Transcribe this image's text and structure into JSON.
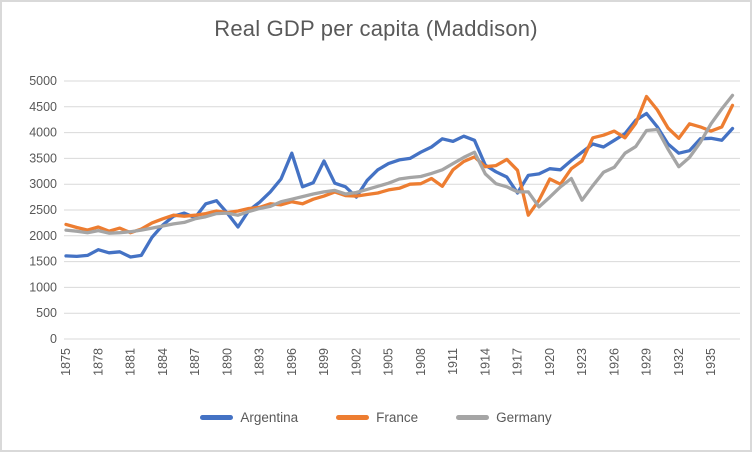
{
  "title": "Real GDP per capita (Maddison)",
  "axis": {
    "label_color": "#595959",
    "gridline_color": "#D9D9D9",
    "y_tick_labels": [
      "0",
      "500",
      "1000",
      "1500",
      "2000",
      "2500",
      "3000",
      "3500",
      "4000",
      "4500",
      "5000"
    ],
    "x_tick_labels": [
      "1875",
      "1878",
      "1881",
      "1884",
      "1887",
      "1890",
      "1893",
      "1896",
      "1899",
      "1902",
      "1905",
      "1908",
      "1911",
      "1914",
      "1917",
      "1920",
      "1923",
      "1926",
      "1929",
      "1932",
      "1935"
    ]
  },
  "legend": {
    "items": [
      {
        "label": "Argentina",
        "color": "#4472C4"
      },
      {
        "label": "France",
        "color": "#ED7D31"
      },
      {
        "label": "Germany",
        "color": "#A5A5A5"
      }
    ]
  },
  "chart_data": {
    "type": "line",
    "title": "Real GDP per capita (Maddison)",
    "xlabel": "",
    "ylabel": "",
    "ylim": [
      0,
      5000
    ],
    "y_tick_step": 500,
    "grid": "horizontal",
    "legend_position": "bottom",
    "x_tick_interval_years": 3,
    "x": [
      1875,
      1876,
      1877,
      1878,
      1879,
      1880,
      1881,
      1882,
      1883,
      1884,
      1885,
      1886,
      1887,
      1888,
      1889,
      1890,
      1891,
      1892,
      1893,
      1894,
      1895,
      1896,
      1897,
      1898,
      1899,
      1900,
      1901,
      1902,
      1903,
      1904,
      1905,
      1906,
      1907,
      1908,
      1909,
      1910,
      1911,
      1912,
      1913,
      1914,
      1915,
      1916,
      1917,
      1918,
      1919,
      1920,
      1921,
      1922,
      1923,
      1924,
      1925,
      1926,
      1927,
      1928,
      1929,
      1930,
      1931,
      1932,
      1933,
      1934,
      1935,
      1936,
      1937
    ],
    "series": [
      {
        "name": "Argentina",
        "color": "#4472C4",
        "values": [
          1610,
          1600,
          1620,
          1730,
          1670,
          1690,
          1590,
          1620,
          1970,
          2210,
          2380,
          2440,
          2350,
          2620,
          2680,
          2440,
          2170,
          2490,
          2650,
          2850,
          3100,
          3600,
          2950,
          3030,
          3450,
          3020,
          2950,
          2750,
          3070,
          3280,
          3400,
          3470,
          3500,
          3620,
          3720,
          3880,
          3830,
          3930,
          3850,
          3370,
          3240,
          3140,
          2830,
          3170,
          3200,
          3300,
          3280,
          3460,
          3620,
          3780,
          3720,
          3850,
          3980,
          4240,
          4370,
          4110,
          3780,
          3600,
          3650,
          3880,
          3890,
          3850,
          4080
        ]
      },
      {
        "name": "France",
        "color": "#ED7D31",
        "values": [
          2220,
          2160,
          2110,
          2170,
          2090,
          2150,
          2060,
          2130,
          2250,
          2330,
          2400,
          2380,
          2400,
          2430,
          2480,
          2450,
          2480,
          2530,
          2550,
          2620,
          2600,
          2660,
          2620,
          2710,
          2770,
          2850,
          2780,
          2770,
          2800,
          2830,
          2890,
          2920,
          3000,
          3010,
          3110,
          2960,
          3280,
          3440,
          3530,
          3340,
          3360,
          3480,
          3270,
          2400,
          2690,
          3100,
          3000,
          3300,
          3450,
          3900,
          3950,
          4030,
          3900,
          4180,
          4700,
          4440,
          4090,
          3890,
          4170,
          4110,
          4030,
          4110,
          4530
        ]
      },
      {
        "name": "Germany",
        "color": "#A5A5A5",
        "values": [
          2110,
          2090,
          2060,
          2100,
          2050,
          2060,
          2080,
          2110,
          2150,
          2190,
          2230,
          2260,
          2330,
          2370,
          2430,
          2440,
          2400,
          2470,
          2530,
          2570,
          2660,
          2710,
          2760,
          2810,
          2850,
          2880,
          2810,
          2840,
          2900,
          2960,
          3020,
          3100,
          3130,
          3150,
          3210,
          3280,
          3400,
          3520,
          3620,
          3200,
          3010,
          2950,
          2850,
          2850,
          2560,
          2750,
          2950,
          3110,
          2690,
          2970,
          3230,
          3330,
          3600,
          3730,
          4040,
          4060,
          3680,
          3340,
          3520,
          3810,
          4170,
          4460,
          4720
        ]
      }
    ]
  }
}
